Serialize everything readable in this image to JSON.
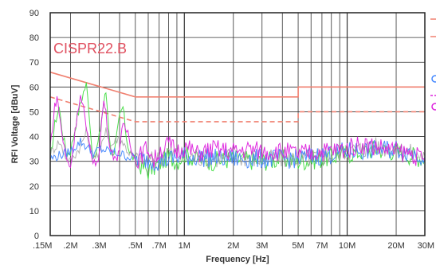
{
  "chart_data": {
    "type": "line",
    "xlabel": "Frequency [Hz]",
    "ylabel": "RFI Voltage [dBuV]",
    "annotation": "CISPR22.B",
    "x_scale": "log",
    "x_range_hz": [
      150000,
      30000000
    ],
    "ylim": [
      0,
      90
    ],
    "grid": true,
    "y_ticks": [
      0,
      10,
      20,
      30,
      40,
      50,
      60,
      70,
      80,
      90
    ],
    "x_ticks": [
      {
        "value": 150000,
        "label": ".15M"
      },
      {
        "value": 200000,
        "label": ".2M"
      },
      {
        "value": 300000,
        "label": ".3M"
      },
      {
        "value": 500000,
        "label": ".5M"
      },
      {
        "value": 700000,
        "label": ".7M"
      },
      {
        "value": 1000000,
        "label": "1M"
      },
      {
        "value": 2000000,
        "label": "2M"
      },
      {
        "value": 3000000,
        "label": "3M"
      },
      {
        "value": 5000000,
        "label": "5M"
      },
      {
        "value": 7000000,
        "label": "7M"
      },
      {
        "value": 10000000,
        "label": "10M"
      },
      {
        "value": 20000000,
        "label": "20M"
      },
      {
        "value": 30000000,
        "label": "30M"
      }
    ],
    "limit_lines": [
      {
        "style": "solid",
        "color": "#f08070",
        "points": [
          [
            150000,
            66
          ],
          [
            500000,
            56
          ],
          [
            5000000,
            56
          ],
          [
            5000000,
            60
          ],
          [
            30000000,
            60
          ]
        ]
      },
      {
        "style": "dashed",
        "color": "#f08070",
        "points": [
          [
            150000,
            56
          ],
          [
            500000,
            46
          ],
          [
            5000000,
            46
          ],
          [
            5000000,
            50
          ],
          [
            30000000,
            50
          ]
        ]
      }
    ],
    "series": [
      {
        "color": "#44dd44",
        "points": [
          [
            150000,
            30
          ],
          [
            160000,
            45
          ],
          [
            170000,
            52
          ],
          [
            180000,
            40
          ],
          [
            190000,
            33
          ],
          [
            200000,
            34
          ],
          [
            220000,
            48
          ],
          [
            240000,
            58
          ],
          [
            250000,
            61
          ],
          [
            260000,
            50
          ],
          [
            270000,
            36
          ],
          [
            280000,
            30
          ],
          [
            300000,
            40
          ],
          [
            320000,
            54
          ],
          [
            330000,
            58
          ],
          [
            340000,
            48
          ],
          [
            350000,
            36
          ],
          [
            370000,
            32
          ],
          [
            400000,
            48
          ],
          [
            420000,
            52
          ],
          [
            440000,
            40
          ],
          [
            460000,
            34
          ],
          [
            500000,
            30
          ],
          [
            550000,
            28
          ],
          [
            600000,
            26
          ],
          [
            700000,
            29
          ],
          [
            800000,
            32
          ],
          [
            900000,
            30
          ],
          [
            1000000,
            33
          ],
          [
            1200000,
            31
          ],
          [
            1500000,
            30
          ],
          [
            2000000,
            31
          ],
          [
            3000000,
            30
          ],
          [
            4000000,
            31
          ],
          [
            5000000,
            30
          ],
          [
            7000000,
            31
          ],
          [
            10000000,
            33
          ],
          [
            15000000,
            35
          ],
          [
            20000000,
            34
          ],
          [
            30000000,
            31
          ]
        ]
      },
      {
        "color": "#a0a0a0",
        "points": [
          [
            150000,
            33
          ],
          [
            170000,
            38
          ],
          [
            190000,
            31
          ],
          [
            200000,
            30
          ],
          [
            230000,
            36
          ],
          [
            250000,
            42
          ],
          [
            270000,
            33
          ],
          [
            300000,
            32
          ],
          [
            330000,
            44
          ],
          [
            350000,
            36
          ],
          [
            400000,
            40
          ],
          [
            450000,
            34
          ],
          [
            500000,
            31
          ],
          [
            600000,
            30
          ],
          [
            700000,
            31
          ],
          [
            800000,
            34
          ],
          [
            1000000,
            32
          ],
          [
            1500000,
            31
          ],
          [
            2000000,
            32
          ],
          [
            3000000,
            31
          ],
          [
            5000000,
            31
          ],
          [
            7000000,
            32
          ],
          [
            10000000,
            34
          ],
          [
            15000000,
            36
          ],
          [
            20000000,
            35
          ],
          [
            30000000,
            32
          ]
        ]
      },
      {
        "color": "#4488ff",
        "points": [
          [
            150000,
            31
          ],
          [
            200000,
            34
          ],
          [
            230000,
            38
          ],
          [
            250000,
            36
          ],
          [
            280000,
            33
          ],
          [
            300000,
            35
          ],
          [
            400000,
            33
          ],
          [
            500000,
            31
          ],
          [
            700000,
            30
          ],
          [
            1000000,
            32
          ],
          [
            2000000,
            31
          ],
          [
            5000000,
            31
          ],
          [
            10000000,
            34
          ],
          [
            20000000,
            35
          ],
          [
            30000000,
            32
          ]
        ]
      },
      {
        "color": "#dd22dd",
        "points": [
          [
            150000,
            36
          ],
          [
            160000,
            52
          ],
          [
            165000,
            56
          ],
          [
            170000,
            50
          ],
          [
            180000,
            38
          ],
          [
            190000,
            30
          ],
          [
            200000,
            28
          ],
          [
            210000,
            38
          ],
          [
            220000,
            50
          ],
          [
            230000,
            56
          ],
          [
            240000,
            52
          ],
          [
            250000,
            42
          ],
          [
            270000,
            32
          ],
          [
            290000,
            28
          ],
          [
            300000,
            34
          ],
          [
            310000,
            46
          ],
          [
            320000,
            54
          ],
          [
            330000,
            50
          ],
          [
            340000,
            40
          ],
          [
            360000,
            34
          ],
          [
            380000,
            30
          ],
          [
            400000,
            36
          ],
          [
            420000,
            44
          ],
          [
            450000,
            42
          ],
          [
            480000,
            34
          ],
          [
            500000,
            30
          ],
          [
            550000,
            33
          ],
          [
            600000,
            36
          ],
          [
            650000,
            30
          ],
          [
            700000,
            34
          ],
          [
            800000,
            37
          ],
          [
            900000,
            34
          ],
          [
            1000000,
            36
          ],
          [
            1200000,
            33
          ],
          [
            1500000,
            35
          ],
          [
            2000000,
            34
          ],
          [
            2500000,
            35
          ],
          [
            3000000,
            34
          ],
          [
            4000000,
            34
          ],
          [
            5000000,
            33
          ],
          [
            7000000,
            34
          ],
          [
            10000000,
            35
          ],
          [
            12000000,
            37
          ],
          [
            15000000,
            36
          ],
          [
            20000000,
            34
          ],
          [
            25000000,
            33
          ],
          [
            30000000,
            30
          ]
        ]
      }
    ]
  }
}
